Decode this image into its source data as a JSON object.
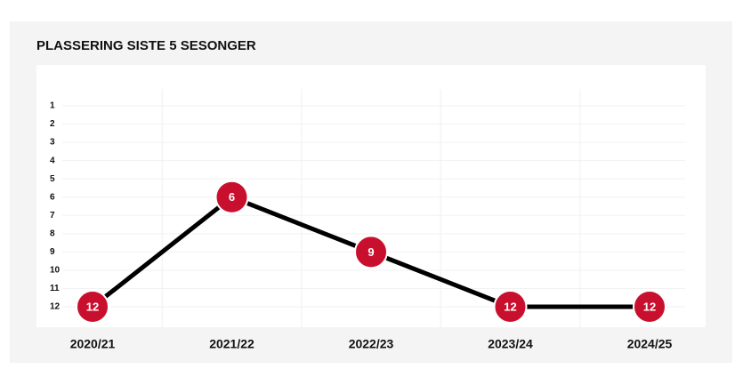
{
  "chart_data": {
    "type": "line",
    "title": "PLASSERING SISTE 5 SESONGER",
    "categories": [
      "2020/21",
      "2021/22",
      "2022/23",
      "2023/24",
      "2024/25"
    ],
    "values": [
      12,
      6,
      9,
      12,
      12
    ],
    "line_color": "#000000",
    "marker_color": "#c8102e",
    "ylim": [
      12,
      1
    ],
    "yticks": [
      1,
      2,
      3,
      4,
      5,
      6,
      7,
      8,
      9,
      10,
      11,
      12
    ],
    "grid": true
  }
}
